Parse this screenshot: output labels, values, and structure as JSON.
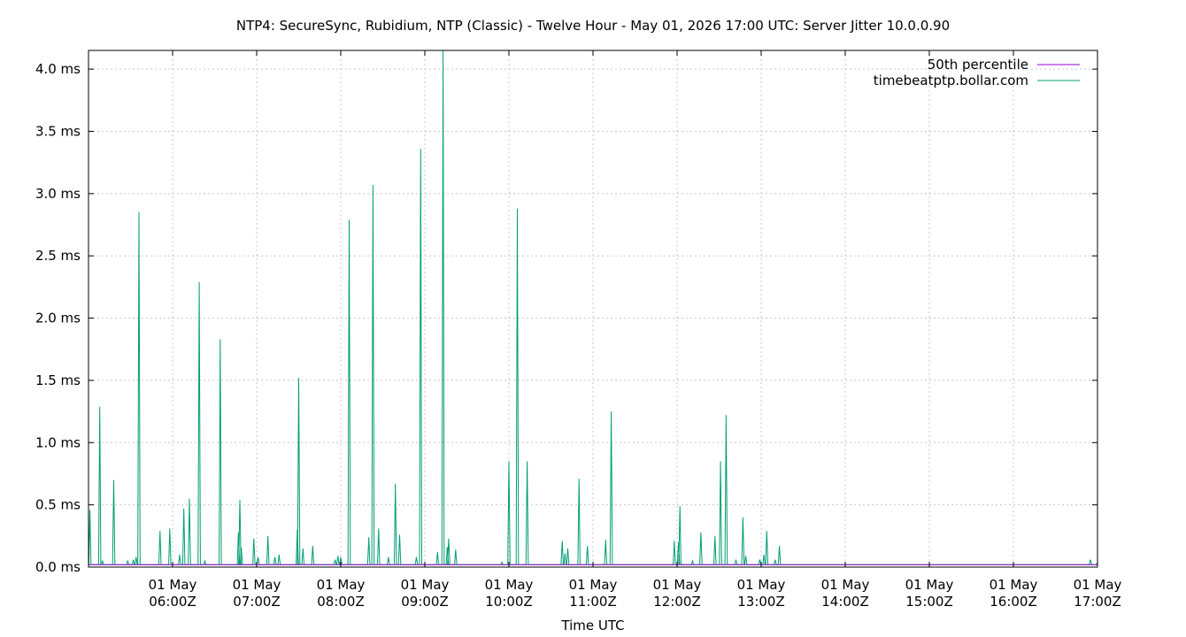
{
  "chart_data": {
    "type": "line",
    "title": "NTP4: SecureSync, Rubidium, NTP (Classic) - Twelve Hour - May 01, 2026 17:00 UTC: Server Jitter 10.0.0.90",
    "xlabel": "Time UTC",
    "ylabel": "",
    "xlim": [
      "2026-05-01T05:00Z",
      "2026-05-01T17:00Z"
    ],
    "ylim": [
      0,
      4.15
    ],
    "yunit": "ms",
    "grid": true,
    "legend_position": "top-right",
    "y_ticks": [
      {
        "value": 0.0,
        "label": "0.0 ms"
      },
      {
        "value": 0.5,
        "label": "0.5 ms"
      },
      {
        "value": 1.0,
        "label": "1.0 ms"
      },
      {
        "value": 1.5,
        "label": "1.5 ms"
      },
      {
        "value": 2.0,
        "label": "2.0 ms"
      },
      {
        "value": 2.5,
        "label": "2.5 ms"
      },
      {
        "value": 3.0,
        "label": "3.0 ms"
      },
      {
        "value": 3.5,
        "label": "3.5 ms"
      },
      {
        "value": 4.0,
        "label": "4.0 ms"
      }
    ],
    "x_ticks": [
      {
        "value": "2026-05-01T06:00Z",
        "line1": "01 May",
        "line2": "06:00Z"
      },
      {
        "value": "2026-05-01T07:00Z",
        "line1": "01 May",
        "line2": "07:00Z"
      },
      {
        "value": "2026-05-01T08:00Z",
        "line1": "01 May",
        "line2": "08:00Z"
      },
      {
        "value": "2026-05-01T09:00Z",
        "line1": "01 May",
        "line2": "09:00Z"
      },
      {
        "value": "2026-05-01T10:00Z",
        "line1": "01 May",
        "line2": "10:00Z"
      },
      {
        "value": "2026-05-01T11:00Z",
        "line1": "01 May",
        "line2": "11:00Z"
      },
      {
        "value": "2026-05-01T12:00Z",
        "line1": "01 May",
        "line2": "12:00Z"
      },
      {
        "value": "2026-05-01T13:00Z",
        "line1": "01 May",
        "line2": "13:00Z"
      },
      {
        "value": "2026-05-01T14:00Z",
        "line1": "01 May",
        "line2": "14:00Z"
      },
      {
        "value": "2026-05-01T15:00Z",
        "line1": "01 May",
        "line2": "15:00Z"
      },
      {
        "value": "2026-05-01T16:00Z",
        "line1": "01 May",
        "line2": "16:00Z"
      },
      {
        "value": "2026-05-01T17:00Z",
        "line1": "01 May",
        "line2": "17:00Z"
      }
    ],
    "series": [
      {
        "name": "50th percentile",
        "color": "#9400d3",
        "points": [
          [
            "2026-05-01T05:00Z",
            0.02
          ],
          [
            "2026-05-01T17:00Z",
            0.02
          ]
        ]
      },
      {
        "name": "timebeatptp.bollar.com",
        "color": "#009e73",
        "baseline": 0.02,
        "spikes": [
          [
            "2026-05-01T05:01Z",
            0.46
          ],
          [
            "2026-05-01T05:08Z",
            1.29
          ],
          [
            "2026-05-01T05:10Z",
            0.05
          ],
          [
            "2026-05-01T05:18Z",
            0.7
          ],
          [
            "2026-05-01T05:28Z",
            0.05
          ],
          [
            "2026-05-01T05:32Z",
            0.06
          ],
          [
            "2026-05-01T05:34Z",
            0.08
          ],
          [
            "2026-05-01T05:36Z",
            2.85
          ],
          [
            "2026-05-01T05:51Z",
            0.29
          ],
          [
            "2026-05-01T05:58Z",
            0.31
          ],
          [
            "2026-05-01T06:05Z",
            0.1
          ],
          [
            "2026-05-01T06:08Z",
            0.47
          ],
          [
            "2026-05-01T06:12Z",
            0.55
          ],
          [
            "2026-05-01T06:19Z",
            2.29
          ],
          [
            "2026-05-01T06:23Z",
            0.05
          ],
          [
            "2026-05-01T06:34Z",
            1.83
          ],
          [
            "2026-05-01T06:47Z",
            0.28
          ],
          [
            "2026-05-01T06:48Z",
            0.54
          ],
          [
            "2026-05-01T06:49Z",
            0.16
          ],
          [
            "2026-05-01T06:58Z",
            0.23
          ],
          [
            "2026-05-01T07:01Z",
            0.08
          ],
          [
            "2026-05-01T07:08Z",
            0.25
          ],
          [
            "2026-05-01T07:13Z",
            0.08
          ],
          [
            "2026-05-01T07:16Z",
            0.1
          ],
          [
            "2026-05-01T07:29Z",
            0.3
          ],
          [
            "2026-05-01T07:30Z",
            1.52
          ],
          [
            "2026-05-01T07:33Z",
            0.15
          ],
          [
            "2026-05-01T07:40Z",
            0.17
          ],
          [
            "2026-05-01T07:56Z",
            0.06
          ],
          [
            "2026-05-01T07:58Z",
            0.09
          ],
          [
            "2026-05-01T08:00Z",
            0.08
          ],
          [
            "2026-05-01T08:06Z",
            2.79
          ],
          [
            "2026-05-01T08:20Z",
            0.24
          ],
          [
            "2026-05-01T08:23Z",
            3.07
          ],
          [
            "2026-05-01T08:27Z",
            0.31
          ],
          [
            "2026-05-01T08:34Z",
            0.08
          ],
          [
            "2026-05-01T08:39Z",
            0.67
          ],
          [
            "2026-05-01T08:42Z",
            0.26
          ],
          [
            "2026-05-01T08:54Z",
            0.08
          ],
          [
            "2026-05-01T08:57Z",
            3.36
          ],
          [
            "2026-05-01T09:09Z",
            0.12
          ],
          [
            "2026-05-01T09:13Z",
            4.15
          ],
          [
            "2026-05-01T09:16Z",
            0.16
          ],
          [
            "2026-05-01T09:17Z",
            0.23
          ],
          [
            "2026-05-01T09:22Z",
            0.14
          ],
          [
            "2026-05-01T09:55Z",
            0.04
          ],
          [
            "2026-05-01T10:00Z",
            0.85
          ],
          [
            "2026-05-01T10:06Z",
            2.88
          ],
          [
            "2026-05-01T10:13Z",
            0.85
          ],
          [
            "2026-05-01T10:38Z",
            0.21
          ],
          [
            "2026-05-01T10:40Z",
            0.11
          ],
          [
            "2026-05-01T10:42Z",
            0.15
          ],
          [
            "2026-05-01T10:50Z",
            0.71
          ],
          [
            "2026-05-01T10:56Z",
            0.17
          ],
          [
            "2026-05-01T11:09Z",
            0.22
          ],
          [
            "2026-05-01T11:13Z",
            1.25
          ],
          [
            "2026-05-01T11:58Z",
            0.21
          ],
          [
            "2026-05-01T12:01Z",
            0.2
          ],
          [
            "2026-05-01T12:02Z",
            0.49
          ],
          [
            "2026-05-01T12:11Z",
            0.05
          ],
          [
            "2026-05-01T12:17Z",
            0.28
          ],
          [
            "2026-05-01T12:27Z",
            0.25
          ],
          [
            "2026-05-01T12:31Z",
            0.85
          ],
          [
            "2026-05-01T12:35Z",
            1.22
          ],
          [
            "2026-05-01T12:42Z",
            0.06
          ],
          [
            "2026-05-01T12:47Z",
            0.4
          ],
          [
            "2026-05-01T12:49Z",
            0.09
          ],
          [
            "2026-05-01T12:59Z",
            0.06
          ],
          [
            "2026-05-01T13:02Z",
            0.1
          ],
          [
            "2026-05-01T13:04Z",
            0.29
          ],
          [
            "2026-05-01T13:10Z",
            0.06
          ],
          [
            "2026-05-01T13:13Z",
            0.17
          ],
          [
            "2026-05-01T16:55Z",
            0.06
          ],
          [
            "2026-05-01T17:00Z",
            0.04
          ]
        ]
      }
    ]
  }
}
